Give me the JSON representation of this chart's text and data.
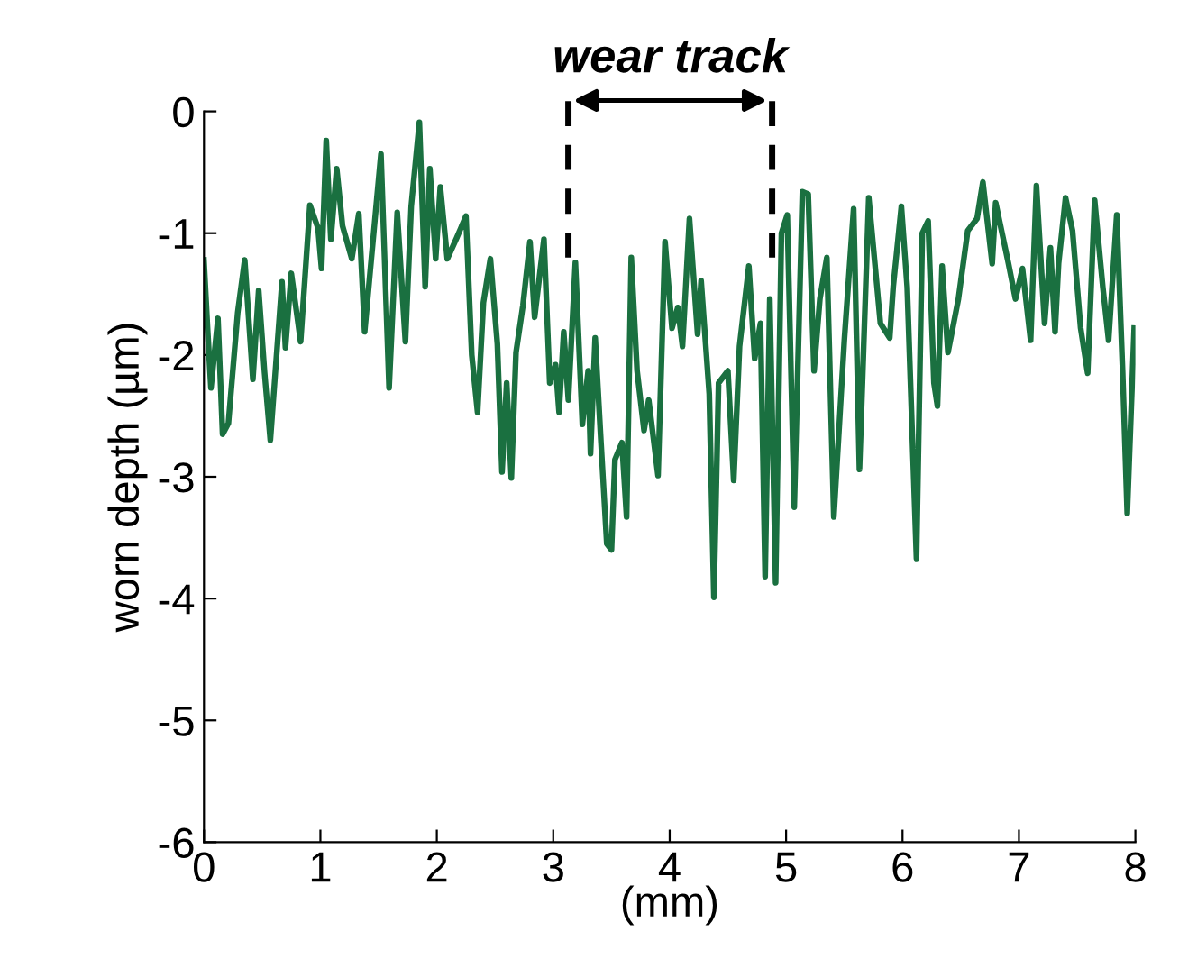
{
  "chart_data": {
    "type": "line",
    "xlabel": "(mm)",
    "ylabel": "worn depth (µm)",
    "xlim": [
      0,
      8
    ],
    "ylim": [
      -6,
      0
    ],
    "xticks": [
      0,
      1,
      2,
      3,
      4,
      5,
      6,
      7,
      8
    ],
    "yticks": [
      0,
      -1,
      -2,
      -3,
      -4,
      -5,
      -6
    ],
    "grid": false,
    "marker": "none",
    "line_style": "solid",
    "ref_lines": [
      {
        "axis": "x",
        "value": 3.13,
        "label": null,
        "line_style": "dashed",
        "color": "#000000"
      },
      {
        "axis": "x",
        "value": 4.88,
        "label": null,
        "line_style": "dashed",
        "color": "#000000"
      }
    ],
    "annotations": [
      "wear track"
    ],
    "series": [
      {
        "color": "#1a7040",
        "x": [
          0.0,
          0.03,
          0.06,
          0.12,
          0.16,
          0.21,
          0.29,
          0.35,
          0.42,
          0.47,
          0.52,
          0.57,
          0.67,
          0.7,
          0.75,
          0.83,
          0.91,
          0.98,
          1.01,
          1.05,
          1.09,
          1.14,
          1.19,
          1.27,
          1.33,
          1.38,
          1.52,
          1.59,
          1.66,
          1.73,
          1.78,
          1.85,
          1.9,
          1.94,
          1.99,
          2.03,
          2.09,
          2.17,
          2.25,
          2.3,
          2.35,
          2.4,
          2.46,
          2.52,
          2.56,
          2.6,
          2.64,
          2.68,
          2.74,
          2.8,
          2.84,
          2.92,
          2.97,
          3.02,
          3.05,
          3.09,
          3.13,
          3.19,
          3.25,
          3.3,
          3.32,
          3.36,
          3.41,
          3.46,
          3.5,
          3.53,
          3.59,
          3.63,
          3.67,
          3.72,
          3.78,
          3.82,
          3.9,
          3.96,
          4.02,
          4.07,
          4.11,
          4.17,
          4.24,
          4.27,
          4.34,
          4.38,
          4.42,
          4.5,
          4.55,
          4.6,
          4.68,
          4.73,
          4.78,
          4.82,
          4.86,
          4.91,
          4.96,
          5.01,
          5.07,
          5.14,
          5.19,
          5.24,
          5.29,
          5.35,
          5.41,
          5.5,
          5.58,
          5.63,
          5.71,
          5.81,
          5.89,
          5.92,
          5.99,
          6.04,
          6.12,
          6.17,
          6.22,
          6.27,
          6.3,
          6.34,
          6.39,
          6.48,
          6.56,
          6.64,
          6.69,
          6.77,
          6.8,
          6.91,
          6.97,
          7.03,
          7.1,
          7.15,
          7.22,
          7.27,
          7.31,
          7.34,
          7.4,
          7.46,
          7.53,
          7.59,
          7.65,
          7.72,
          7.77,
          7.84,
          7.89,
          7.93,
          7.99
        ],
        "values": [
          -1.22,
          -1.77,
          -2.27,
          -1.7,
          -2.65,
          -2.56,
          -1.65,
          -1.22,
          -2.2,
          -1.47,
          -2.14,
          -2.7,
          -1.4,
          -1.94,
          -1.33,
          -1.89,
          -0.77,
          -0.96,
          -1.29,
          -0.24,
          -1.05,
          -0.47,
          -0.94,
          -1.21,
          -0.84,
          -1.81,
          -0.35,
          -2.27,
          -0.83,
          -1.89,
          -0.78,
          -0.09,
          -1.44,
          -0.47,
          -1.21,
          -0.62,
          -1.21,
          -1.04,
          -0.86,
          -2.0,
          -2.47,
          -1.57,
          -1.21,
          -1.91,
          -2.96,
          -2.23,
          -3.01,
          -1.98,
          -1.59,
          -1.07,
          -1.69,
          -1.05,
          -2.23,
          -2.08,
          -2.47,
          -1.81,
          -2.37,
          -1.24,
          -2.57,
          -2.13,
          -2.81,
          -1.86,
          -2.72,
          -3.55,
          -3.6,
          -2.86,
          -2.72,
          -3.33,
          -1.2,
          -2.13,
          -2.62,
          -2.37,
          -2.99,
          -1.07,
          -1.78,
          -1.61,
          -1.93,
          -0.88,
          -1.83,
          -1.39,
          -2.32,
          -3.99,
          -2.23,
          -2.13,
          -3.03,
          -1.93,
          -1.27,
          -2.03,
          -1.74,
          -3.82,
          -1.54,
          -3.87,
          -1.0,
          -0.85,
          -3.25,
          -0.66,
          -0.68,
          -2.13,
          -1.54,
          -1.2,
          -3.33,
          -1.88,
          -0.8,
          -2.94,
          -0.71,
          -1.74,
          -1.86,
          -1.44,
          -0.78,
          -1.44,
          -3.67,
          -1.0,
          -0.9,
          -2.23,
          -2.42,
          -1.27,
          -1.98,
          -1.54,
          -0.98,
          -0.88,
          -0.58,
          -1.25,
          -0.75,
          -1.25,
          -1.54,
          -1.29,
          -1.88,
          -0.61,
          -1.74,
          -1.12,
          -1.81,
          -1.25,
          -0.71,
          -0.98,
          -1.78,
          -2.15,
          -0.73,
          -1.44,
          -1.88,
          -0.85,
          -2.13,
          -3.3,
          -1.78
        ]
      }
    ]
  }
}
